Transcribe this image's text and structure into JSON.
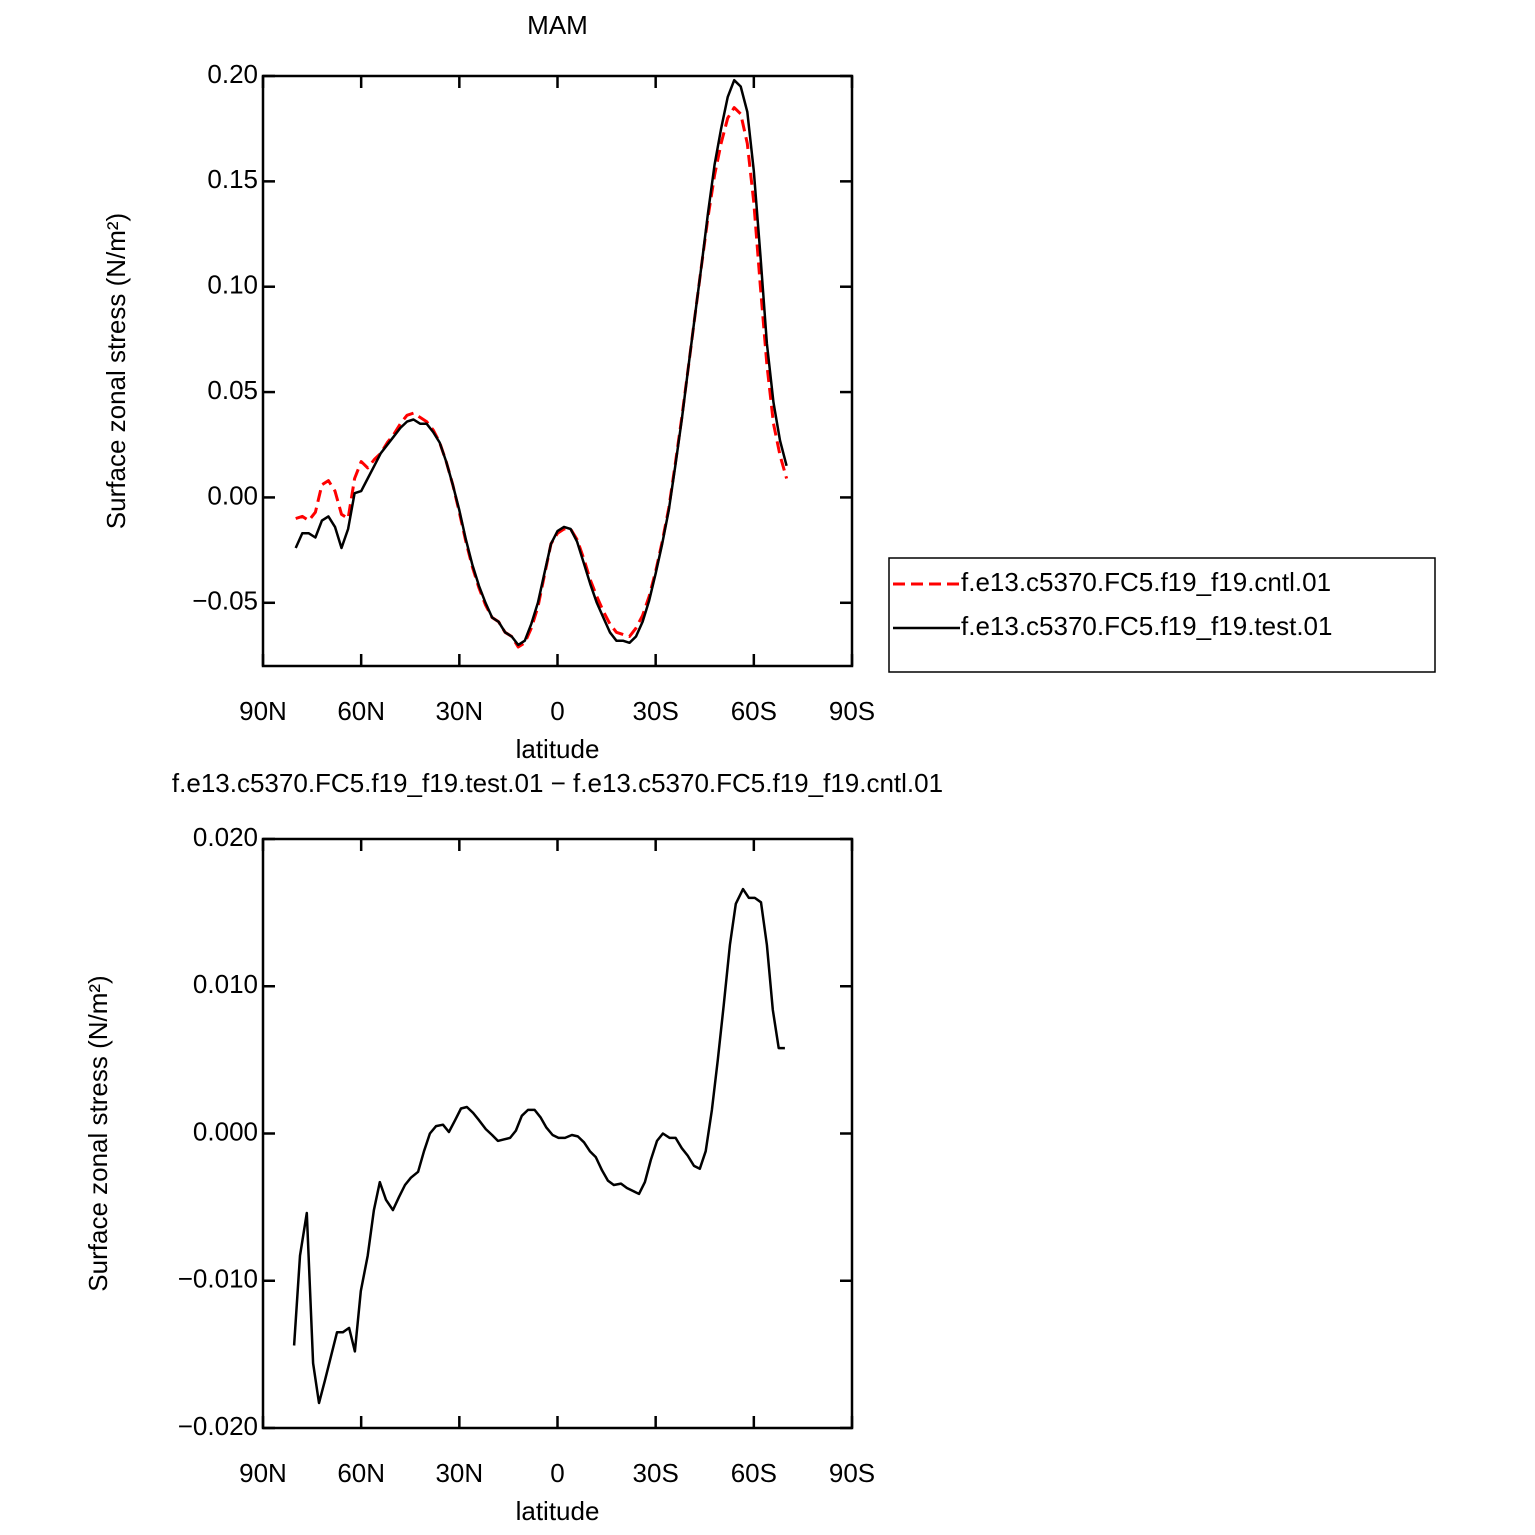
{
  "chart_data": [
    {
      "type": "line",
      "title": "MAM",
      "x_label": "latitude",
      "y_label": "Surface zonal stress (N/m²)",
      "x": [
        80,
        78,
        76,
        74,
        72,
        70,
        68,
        66,
        64,
        62,
        60,
        58,
        56,
        54,
        52,
        50,
        48,
        46,
        44,
        42,
        40,
        38,
        36,
        34,
        32,
        30,
        28,
        26,
        24,
        22,
        20,
        18,
        16,
        14,
        12,
        10,
        8,
        6,
        4,
        2,
        0,
        -2,
        -4,
        -6,
        -8,
        -10,
        -12,
        -14,
        -16,
        -18,
        -20,
        -22,
        -24,
        -26,
        -28,
        -30,
        -32,
        -34,
        -36,
        -38,
        -40,
        -42,
        -44,
        -46,
        -48,
        -50,
        -52,
        -54,
        -56,
        -58,
        -60,
        -62,
        -64,
        -66,
        -68,
        -70
      ],
      "series": [
        {
          "name": "f.e13.c5370.FC5.f19_f19.cntl.01",
          "color": "#ff0000",
          "dashed": true,
          "values": [
            -0.01,
            -0.009,
            -0.011,
            -0.007,
            0.006,
            0.008,
            0.003,
            -0.008,
            -0.01,
            0.009,
            0.017,
            0.014,
            0.018,
            0.021,
            0.026,
            0.03,
            0.035,
            0.039,
            0.04,
            0.038,
            0.036,
            0.032,
            0.026,
            0.017,
            0.006,
            -0.007,
            -0.021,
            -0.033,
            -0.043,
            -0.051,
            -0.057,
            -0.059,
            -0.064,
            -0.066,
            -0.071,
            -0.069,
            -0.062,
            -0.052,
            -0.037,
            -0.022,
            -0.017,
            -0.015,
            -0.015,
            -0.02,
            -0.029,
            -0.039,
            -0.047,
            -0.054,
            -0.06,
            -0.064,
            -0.065,
            -0.066,
            -0.062,
            -0.056,
            -0.047,
            -0.035,
            -0.021,
            -0.005,
            0.016,
            0.038,
            0.062,
            0.086,
            0.11,
            0.133,
            0.153,
            0.168,
            0.18,
            0.185,
            0.182,
            0.168,
            0.14,
            0.1,
            0.063,
            0.035,
            0.02,
            0.009
          ]
        },
        {
          "name": "f.e13.c5370.FC5.f19_f19.test.01",
          "color": "#000000",
          "dashed": false,
          "values": [
            -0.024,
            -0.017,
            -0.017,
            -0.019,
            -0.011,
            -0.009,
            -0.014,
            -0.024,
            -0.015,
            0.002,
            0.003,
            0.009,
            0.015,
            0.021,
            0.025,
            0.029,
            0.033,
            0.036,
            0.037,
            0.035,
            0.035,
            0.031,
            0.026,
            0.017,
            0.006,
            -0.006,
            -0.02,
            -0.032,
            -0.042,
            -0.05,
            -0.057,
            -0.059,
            -0.064,
            -0.066,
            -0.07,
            -0.068,
            -0.06,
            -0.05,
            -0.036,
            -0.022,
            -0.016,
            -0.014,
            -0.015,
            -0.021,
            -0.031,
            -0.041,
            -0.05,
            -0.057,
            -0.064,
            -0.068,
            -0.068,
            -0.069,
            -0.066,
            -0.059,
            -0.049,
            -0.036,
            -0.022,
            -0.006,
            0.015,
            0.037,
            0.062,
            0.086,
            0.11,
            0.135,
            0.158,
            0.175,
            0.19,
            0.198,
            0.195,
            0.183,
            0.155,
            0.115,
            0.073,
            0.045,
            0.027,
            0.015
          ]
        }
      ],
      "xlim": [
        90,
        -90
      ],
      "xticks": [
        {
          "value": 90,
          "label": "90N"
        },
        {
          "value": 60,
          "label": "60N"
        },
        {
          "value": 30,
          "label": "30N"
        },
        0,
        {
          "value": -30,
          "label": "30S"
        },
        {
          "value": -60,
          "label": "60S"
        },
        {
          "value": -90,
          "label": "90S"
        }
      ],
      "ylim": [
        -0.08,
        0.2
      ],
      "yticks": [
        {
          "value": -0.05,
          "label": "−0.05"
        },
        {
          "value": 0,
          "label": "0.00"
        },
        0.05,
        {
          "value": 0.1,
          "label": "0.10"
        },
        0.15,
        {
          "value": 0.2,
          "label": "0.20"
        }
      ],
      "legend": "right"
    },
    {
      "type": "line",
      "title": "f.e13.c5370.FC5.f19_f19.test.01 − f.e13.c5370.FC5.f19_f19.cntl.01",
      "x_label": "latitude",
      "y_label": "Surface zonal stress (N/m²)",
      "x": [
        80.5,
        78.7,
        76.6,
        74.7,
        72.9,
        71.1,
        69.2,
        67.4,
        65.6,
        63.7,
        61.9,
        60.1,
        58,
        56.1,
        54.3,
        52.4,
        50.3,
        48.4,
        46.6,
        44.8,
        42.6,
        40.8,
        39,
        37.1,
        35,
        33.2,
        31.3,
        29.5,
        27.7,
        25.8,
        24,
        21.9,
        20,
        18.2,
        16.4,
        14.5,
        12.7,
        10.9,
        9,
        7,
        5.2,
        3.4,
        1.5,
        -0.3,
        -2.3,
        -4.4,
        -6.2,
        -8.1,
        -9.9,
        -11.7,
        -13.6,
        -15.4,
        -17.2,
        -19.4,
        -21.2,
        -23,
        -24.9,
        -26.7,
        -28.5,
        -30.4,
        -32.2,
        -34.3,
        -36.1,
        -38,
        -39.8,
        -41.7,
        -43.5,
        -45.3,
        -47.2,
        -49,
        -50.8,
        -52.7,
        -54.5,
        -56.7,
        -58.5,
        -60.3,
        -62.2,
        -64,
        -65.8,
        -67.6,
        -69.5
      ],
      "values": [
        -0.0144,
        -0.0083,
        -0.0054,
        -0.0156,
        -0.0183,
        -0.0168,
        -0.0151,
        -0.0135,
        -0.0135,
        -0.0132,
        -0.0148,
        -0.0107,
        -0.0083,
        -0.0052,
        -0.0033,
        -0.0045,
        -0.0052,
        -0.0043,
        -0.0035,
        -0.003,
        -0.0026,
        -0.0012,
        0,
        0.0005,
        0.0006,
        0.0001,
        0.0009,
        0.0017,
        0.0018,
        0.0014,
        0.0009,
        0.0003,
        -0.0001,
        -0.0005,
        -0.0004,
        -0.0003,
        0.0002,
        0.0012,
        0.0016,
        0.0016,
        0.0011,
        0.0004,
        -0.0001,
        -0.0003,
        -0.0003,
        -0.0001,
        -0.0002,
        -0.0006,
        -0.0012,
        -0.0016,
        -0.0025,
        -0.0032,
        -0.0035,
        -0.0034,
        -0.0037,
        -0.0039,
        -0.0041,
        -0.0033,
        -0.0018,
        -0.0005,
        0,
        -0.0003,
        -0.0003,
        -0.001,
        -0.0015,
        -0.0022,
        -0.0024,
        -0.0012,
        0.0016,
        0.005,
        0.0087,
        0.0128,
        0.0156,
        0.0166,
        0.016,
        0.016,
        0.0157,
        0.0128,
        0.0084,
        0.0058,
        0.0058
      ],
      "color": "#000000",
      "xlim": [
        90,
        -90
      ],
      "xticks": [
        {
          "value": 90,
          "label": "90N"
        },
        {
          "value": 60,
          "label": "60N"
        },
        {
          "value": 30,
          "label": "30N"
        },
        0,
        {
          "value": -30,
          "label": "30S"
        },
        {
          "value": -60,
          "label": "60S"
        },
        {
          "value": -90,
          "label": "90S"
        }
      ],
      "ylim": [
        -0.02,
        0.02
      ],
      "yticks": [
        {
          "value": -0.02,
          "label": "−0.020"
        },
        {
          "value": -0.01,
          "label": "−0.010"
        },
        {
          "value": 0,
          "label": "0.000"
        },
        {
          "value": 0.01,
          "label": "0.010"
        },
        {
          "value": 0.02,
          "label": "0.020"
        }
      ]
    }
  ]
}
